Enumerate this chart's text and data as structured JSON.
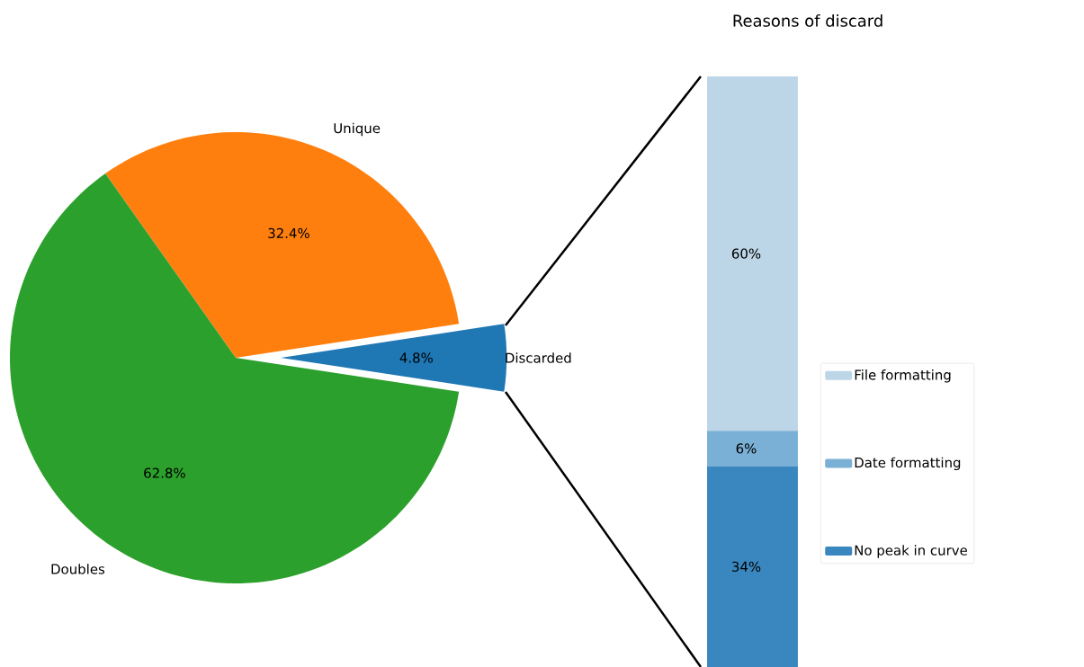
{
  "chart_data": [
    {
      "type": "pie",
      "categories": [
        "Discarded",
        "Unique",
        "Doubles"
      ],
      "values": [
        4.8,
        32.4,
        62.8
      ],
      "colors": [
        "#1f77b4",
        "#ff7f0e",
        "#2ca02c"
      ],
      "value_labels": [
        "4.8%",
        "32.4%",
        "62.8%"
      ]
    },
    {
      "type": "bar",
      "title": "Reasons of discard",
      "stacked": true,
      "categories": [
        null
      ],
      "legend": "right",
      "series": [
        {
          "name": "No peak in curve",
          "color": "#3a87bf",
          "values": [
            34
          ],
          "value_labels": [
            "34%"
          ]
        },
        {
          "name": "Date formatting",
          "color": "#7ab0d5",
          "values": [
            6
          ],
          "value_labels": [
            "6%"
          ]
        },
        {
          "name": "File formatting",
          "color": "#bcd6e8",
          "values": [
            60
          ],
          "value_labels": [
            "60%"
          ]
        }
      ]
    }
  ]
}
